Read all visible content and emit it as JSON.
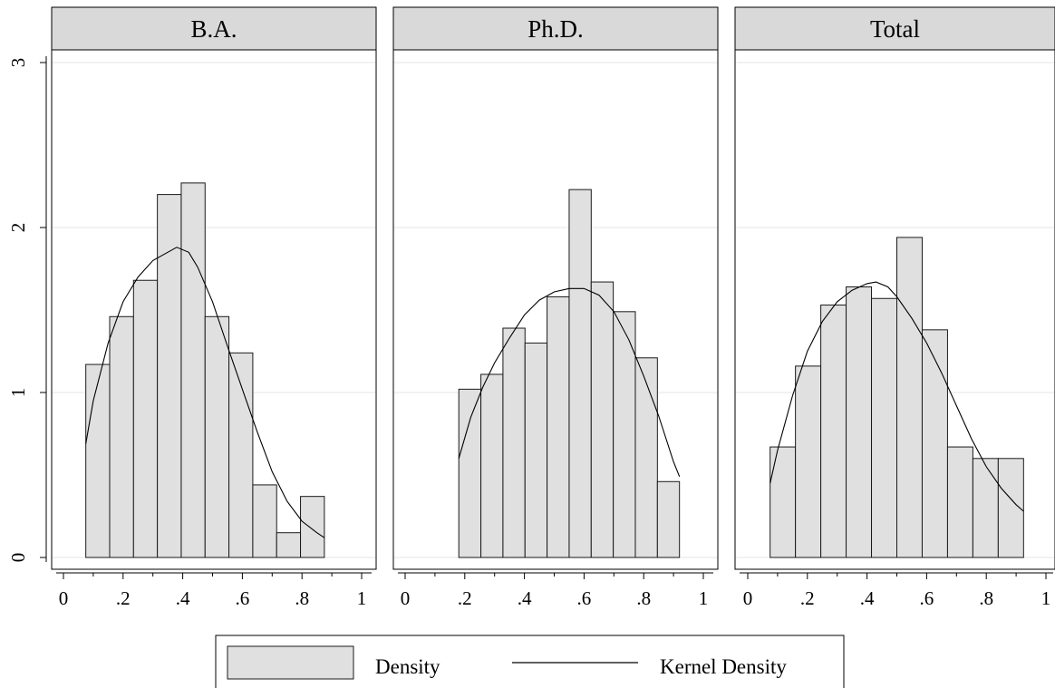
{
  "chart_data": [
    {
      "type": "bar",
      "title": "B.A.",
      "xlim": [
        0,
        1
      ],
      "ylim": [
        0,
        3
      ],
      "grid": true,
      "bins": [
        {
          "x0": 0.075,
          "x1": 0.155,
          "density": 1.17
        },
        {
          "x0": 0.155,
          "x1": 0.235,
          "density": 1.46
        },
        {
          "x0": 0.235,
          "x1": 0.315,
          "density": 1.68
        },
        {
          "x0": 0.315,
          "x1": 0.395,
          "density": 2.2
        },
        {
          "x0": 0.395,
          "x1": 0.475,
          "density": 2.27
        },
        {
          "x0": 0.475,
          "x1": 0.555,
          "density": 1.46
        },
        {
          "x0": 0.555,
          "x1": 0.635,
          "density": 1.24
        },
        {
          "x0": 0.635,
          "x1": 0.715,
          "density": 0.44
        },
        {
          "x0": 0.715,
          "x1": 0.795,
          "density": 0.15
        },
        {
          "x0": 0.795,
          "x1": 0.875,
          "density": 0.37
        }
      ],
      "kernel_density": [
        [
          0.075,
          0.69
        ],
        [
          0.1,
          0.95
        ],
        [
          0.15,
          1.3
        ],
        [
          0.2,
          1.55
        ],
        [
          0.25,
          1.7
        ],
        [
          0.3,
          1.8
        ],
        [
          0.35,
          1.85
        ],
        [
          0.38,
          1.88
        ],
        [
          0.42,
          1.85
        ],
        [
          0.45,
          1.76
        ],
        [
          0.5,
          1.55
        ],
        [
          0.55,
          1.28
        ],
        [
          0.6,
          1.02
        ],
        [
          0.65,
          0.76
        ],
        [
          0.7,
          0.52
        ],
        [
          0.75,
          0.34
        ],
        [
          0.8,
          0.22
        ],
        [
          0.85,
          0.15
        ],
        [
          0.875,
          0.12
        ]
      ]
    },
    {
      "type": "bar",
      "title": "Ph.D.",
      "xlim": [
        0,
        1
      ],
      "ylim": [
        0,
        3
      ],
      "grid": true,
      "bins": [
        {
          "x0": 0.18,
          "x1": 0.254,
          "density": 1.02
        },
        {
          "x0": 0.254,
          "x1": 0.328,
          "density": 1.11
        },
        {
          "x0": 0.328,
          "x1": 0.402,
          "density": 1.39
        },
        {
          "x0": 0.402,
          "x1": 0.476,
          "density": 1.3
        },
        {
          "x0": 0.476,
          "x1": 0.55,
          "density": 1.58
        },
        {
          "x0": 0.55,
          "x1": 0.624,
          "density": 2.23
        },
        {
          "x0": 0.624,
          "x1": 0.698,
          "density": 1.67
        },
        {
          "x0": 0.698,
          "x1": 0.772,
          "density": 1.49
        },
        {
          "x0": 0.772,
          "x1": 0.846,
          "density": 1.21
        },
        {
          "x0": 0.846,
          "x1": 0.92,
          "density": 0.46
        }
      ],
      "kernel_density": [
        [
          0.18,
          0.6
        ],
        [
          0.22,
          0.85
        ],
        [
          0.26,
          1.03
        ],
        [
          0.3,
          1.18
        ],
        [
          0.35,
          1.33
        ],
        [
          0.4,
          1.47
        ],
        [
          0.45,
          1.56
        ],
        [
          0.5,
          1.61
        ],
        [
          0.55,
          1.63
        ],
        [
          0.6,
          1.63
        ],
        [
          0.65,
          1.59
        ],
        [
          0.7,
          1.49
        ],
        [
          0.75,
          1.32
        ],
        [
          0.8,
          1.1
        ],
        [
          0.85,
          0.86
        ],
        [
          0.9,
          0.58
        ],
        [
          0.92,
          0.49
        ]
      ]
    },
    {
      "type": "bar",
      "title": "Total",
      "xlim": [
        0,
        1
      ],
      "ylim": [
        0,
        3
      ],
      "grid": true,
      "bins": [
        {
          "x0": 0.075,
          "x1": 0.16,
          "density": 0.67
        },
        {
          "x0": 0.16,
          "x1": 0.245,
          "density": 1.16
        },
        {
          "x0": 0.245,
          "x1": 0.33,
          "density": 1.53
        },
        {
          "x0": 0.33,
          "x1": 0.415,
          "density": 1.64
        },
        {
          "x0": 0.415,
          "x1": 0.5,
          "density": 1.57
        },
        {
          "x0": 0.5,
          "x1": 0.585,
          "density": 1.94
        },
        {
          "x0": 0.585,
          "x1": 0.67,
          "density": 1.38
        },
        {
          "x0": 0.67,
          "x1": 0.755,
          "density": 0.67
        },
        {
          "x0": 0.755,
          "x1": 0.84,
          "density": 0.6
        },
        {
          "x0": 0.84,
          "x1": 0.925,
          "density": 0.6
        }
      ],
      "kernel_density": [
        [
          0.075,
          0.45
        ],
        [
          0.1,
          0.65
        ],
        [
          0.15,
          0.98
        ],
        [
          0.2,
          1.25
        ],
        [
          0.25,
          1.43
        ],
        [
          0.3,
          1.55
        ],
        [
          0.35,
          1.62
        ],
        [
          0.4,
          1.66
        ],
        [
          0.43,
          1.67
        ],
        [
          0.47,
          1.64
        ],
        [
          0.5,
          1.58
        ],
        [
          0.55,
          1.45
        ],
        [
          0.6,
          1.3
        ],
        [
          0.65,
          1.12
        ],
        [
          0.7,
          0.92
        ],
        [
          0.75,
          0.72
        ],
        [
          0.8,
          0.55
        ],
        [
          0.85,
          0.42
        ],
        [
          0.9,
          0.32
        ],
        [
          0.925,
          0.28
        ]
      ]
    }
  ],
  "axes": {
    "y_ticks": [
      0,
      1,
      2,
      3
    ],
    "y_tick_labels": [
      "0",
      "1",
      "2",
      "3"
    ],
    "x_major_ticks": [
      0,
      0.2,
      0.4,
      0.6,
      0.8,
      1
    ],
    "x_minor_ticks": [
      0.1,
      0.3,
      0.5,
      0.7,
      0.9
    ],
    "x_tick_labels": [
      "0",
      ".2",
      ".4",
      ".6",
      ".8",
      "1"
    ]
  },
  "legend": {
    "placement": "bottom-center",
    "items": [
      {
        "label": "Density",
        "kind": "bar"
      },
      {
        "label": "Kernel Density",
        "kind": "line"
      }
    ]
  },
  "colors": {
    "bar_fill": "#e0e0e0",
    "bar_stroke": "#1a1a1a",
    "strip_fill": "#d9d9d9",
    "grid": "#e6e6e6",
    "line": "#000000"
  }
}
